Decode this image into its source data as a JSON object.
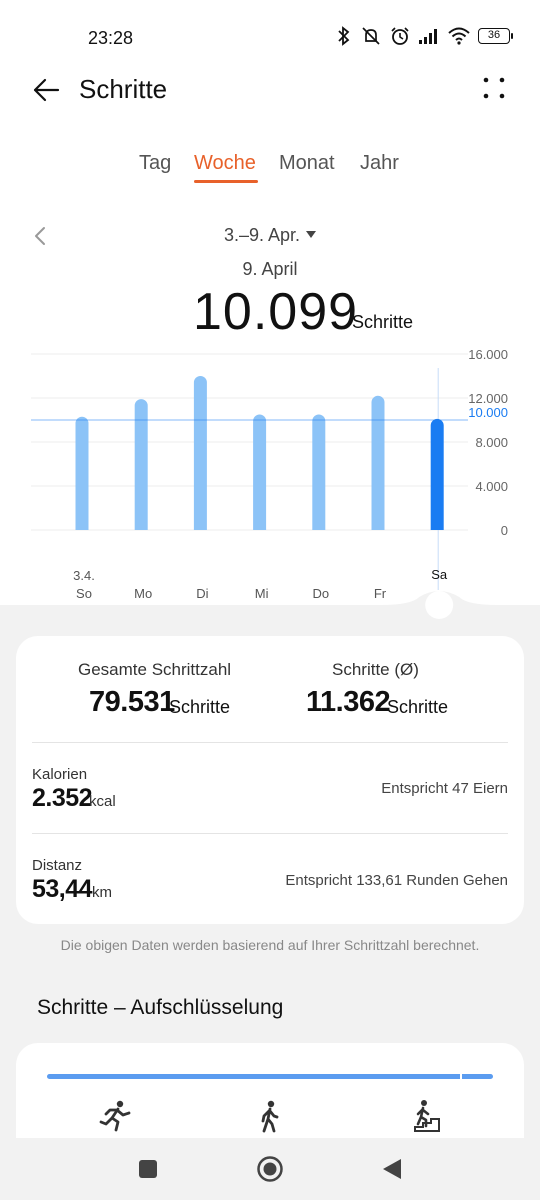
{
  "status": {
    "time": "23:28",
    "battery": "36"
  },
  "header": {
    "title": "Schritte"
  },
  "tabs": [
    {
      "label": "Tag"
    },
    {
      "label": "Woche"
    },
    {
      "label": "Monat"
    },
    {
      "label": "Jahr"
    }
  ],
  "active_tab": "Woche",
  "period": {
    "range": "3.–9. Apr.",
    "selected_date": "9. April",
    "selected_value": "10.099",
    "selected_unit": "Schritte"
  },
  "chart_data": {
    "type": "bar",
    "categories": [
      "So",
      "Mo",
      "Di",
      "Mi",
      "Do",
      "Fr",
      "Sa"
    ],
    "first_category_date": "3.4.",
    "values": [
      10300,
      11900,
      14000,
      10500,
      10500,
      12200,
      10099
    ],
    "selected_index": 6,
    "goal_line": 10000,
    "goal_label": "10.000",
    "ylim": [
      0,
      16000
    ],
    "ytick_labels": [
      "16.000",
      "12.000",
      "8.000",
      "4.000",
      "0"
    ],
    "ytick_values": [
      16000,
      12000,
      8000,
      4000,
      0
    ],
    "colors": {
      "bar": "#8cc3f7",
      "selected": "#1a7cf2",
      "goal": "#1a7cf2",
      "grid": "#ececec"
    },
    "grid": true
  },
  "summary": {
    "total_label": "Gesamte Schrittzahl",
    "total_value": "79.531",
    "total_unit": "Schritte",
    "avg_label": "Schritte (Ø)",
    "avg_value": "11.362",
    "avg_unit": "Schritte",
    "calories_label": "Kalorien",
    "calories_value": "2.352",
    "calories_unit": "kcal",
    "calories_note": "Entspricht 47 Eiern",
    "distance_label": "Distanz",
    "distance_value": "53,44",
    "distance_unit": "km",
    "distance_note": "Entspricht 133,61 Runden Gehen"
  },
  "footnote": "Die obigen Daten werden basierend auf Ihrer Schrittzahl berechnet.",
  "breakdown": {
    "title": "Schritte – Aufschlüsselung",
    "icons": [
      "running-icon",
      "walking-icon",
      "stairs-icon"
    ],
    "accent": "#5b9cf0"
  },
  "accent_color": "#e8612a"
}
